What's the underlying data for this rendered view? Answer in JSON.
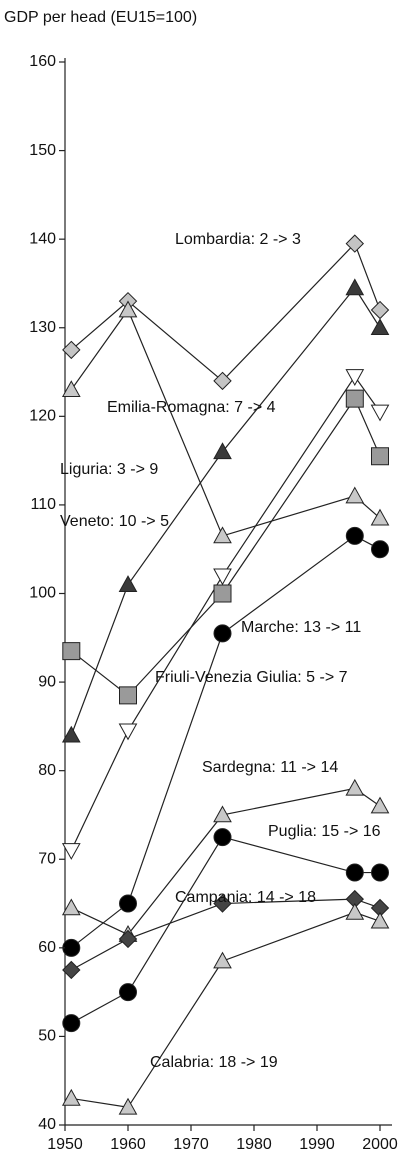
{
  "chart_data": {
    "type": "line",
    "y_label": "GDP per head (EU15=100)",
    "x": [
      1951,
      1960,
      1975,
      1996,
      2000
    ],
    "xlim": [
      1950,
      2000
    ],
    "xticks": [
      1950,
      1960,
      1970,
      1980,
      1990,
      2000
    ],
    "ylim": [
      40,
      160
    ],
    "yticks": [
      40,
      50,
      60,
      70,
      80,
      90,
      100,
      110,
      120,
      130,
      140,
      150,
      160
    ],
    "grid": false,
    "series": [
      {
        "marker": "diamond",
        "color": "#c4c4c4",
        "values": [
          127.5,
          133,
          124,
          139.5,
          132
        ]
      },
      {
        "marker": "triangle-up",
        "color": "#3a3a3a",
        "values": [
          84,
          101,
          116,
          134.5,
          130
        ]
      },
      {
        "marker": "triangle-up",
        "color": "#c8c8c8",
        "values": [
          123,
          132,
          106.5,
          111,
          108.5
        ]
      },
      {
        "marker": "triangle-down",
        "color": "#ffffff",
        "values": [
          71,
          84.5,
          102,
          124.5,
          120.5
        ]
      },
      {
        "marker": "square",
        "color": "#9a9a9a",
        "values": [
          93.5,
          88.5,
          100,
          122,
          115.5
        ]
      },
      {
        "marker": "circle",
        "color": "#000000",
        "values": [
          60,
          65,
          95.5,
          106.5,
          105
        ]
      },
      {
        "marker": "triangle-up",
        "color": "#c8c8c8",
        "values": [
          64.5,
          61.5,
          75,
          78,
          76
        ]
      },
      {
        "marker": "circle",
        "color": "#000000",
        "values": [
          51.5,
          55,
          72.5,
          68.5,
          68.5
        ]
      },
      {
        "marker": "diamond",
        "color": "#444444",
        "values": [
          57.5,
          61,
          65,
          65.5,
          64.5
        ]
      },
      {
        "marker": "triangle-up",
        "color": "#c8c8c8",
        "values": [
          43,
          42,
          58.5,
          64,
          63
        ]
      }
    ],
    "annotations": [
      "Lombardia: 2 -> 3",
      "Emilia-Romagna: 7 -> 4",
      "Liguria: 3 -> 9",
      "Veneto: 10 -> 5",
      "Marche: 13 -> 11",
      "Friuli-Venezia Giulia: 5 -> 7",
      "Sardegna: 11 -> 14",
      "Puglia: 15 -> 16",
      "Campania: 14 -> 18",
      "Calabria: 18 -> 19"
    ]
  }
}
